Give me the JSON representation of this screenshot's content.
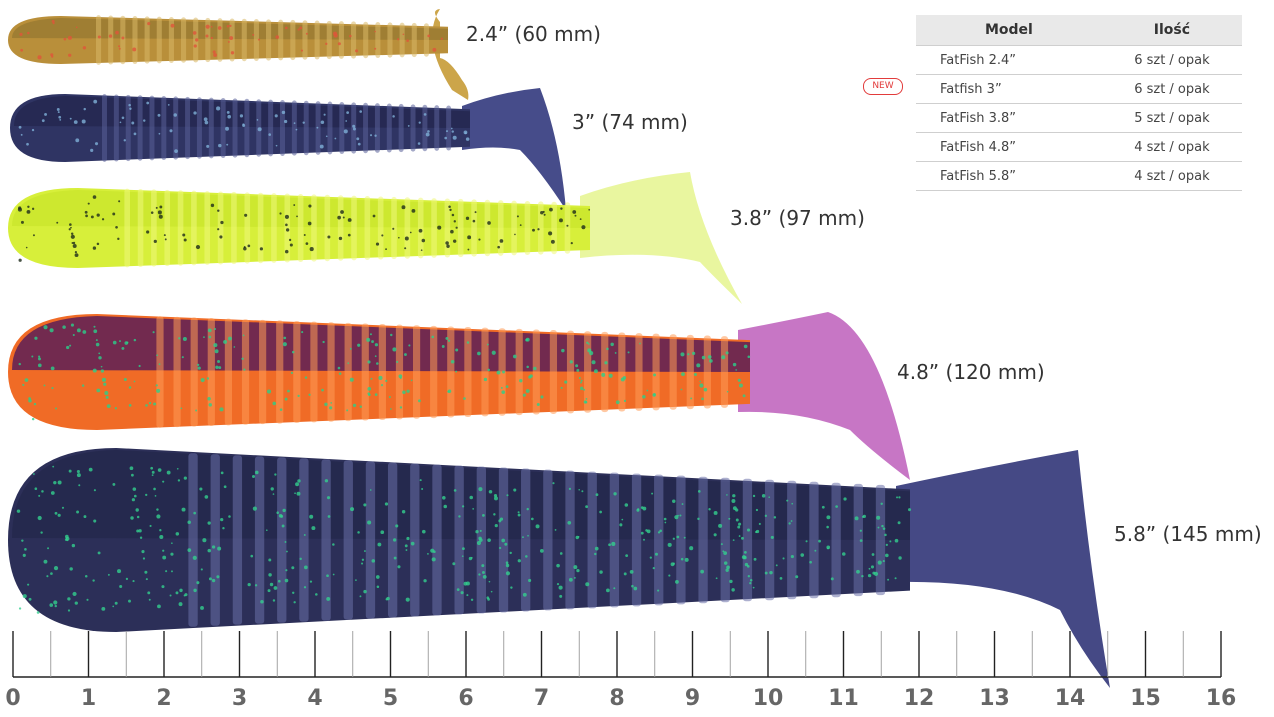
{
  "lures": [
    {
      "label": "2.4” (60 mm)",
      "name": "2-4-lure",
      "colors": {
        "body": "#b98f3a",
        "back": "#9a7b33",
        "belly": "#c7a24c",
        "tail": "#c9a040",
        "spot": "#e0553a",
        "rib": "#d8b866"
      }
    },
    {
      "label": "3” (74 mm)",
      "name": "3-lure",
      "colors": {
        "body": "#2f3463",
        "back": "#242850",
        "belly": "#3b4277",
        "tail": "#3c4284",
        "spot": "#7fb0d8",
        "rib": "#5a6099"
      }
    },
    {
      "label": "3.8” (97 mm)",
      "name": "3-8-lure",
      "colors": {
        "body": "#d7ef3a",
        "back": "#cbe62e",
        "belly": "#e3f45a",
        "tail": "#e8f59a",
        "spot": "#1d2a1a",
        "rib": "#eef87a"
      }
    },
    {
      "label": "4.8” (120 mm)",
      "name": "4-8-lure",
      "colors": {
        "body": "#f06b26",
        "back": "#5c1f57",
        "belly": "#ff7a2a",
        "tail": "#c46fc2",
        "spot": "#2bd08a",
        "rib": "#ff9a55"
      }
    },
    {
      "label": "5.8” (145 mm)",
      "name": "5-8-lure",
      "colors": {
        "body": "#2c2f58",
        "back": "#25284c",
        "belly": "#3a3f70",
        "tail": "#3b3f7e",
        "spot": "#33d08f",
        "rib": "#6a6fa8"
      }
    }
  ],
  "table": {
    "headers": [
      "Model",
      "Ilość"
    ],
    "rows": [
      {
        "model": "FatFish 2.4”",
        "qty": "6 szt / opak"
      },
      {
        "model": "Fatfish 3”",
        "qty": "6 szt / opak"
      },
      {
        "model": "FatFish 3.8”",
        "qty": "5 szt / opak"
      },
      {
        "model": "FatFish 4.8”",
        "qty": "4 szt / opak"
      },
      {
        "model": "FatFish 5.8”",
        "qty": "4 szt / opak"
      }
    ],
    "new_badge": "NEW"
  },
  "ruler": {
    "labels": [
      "0",
      "1",
      "2",
      "3",
      "4",
      "5",
      "6",
      "7",
      "8",
      "9",
      "10",
      "11",
      "12",
      "13",
      "14",
      "15",
      "16"
    ]
  },
  "colors": {
    "badge": "#e23b3b",
    "ruler_text": "#666666",
    "tick": "#222222"
  }
}
